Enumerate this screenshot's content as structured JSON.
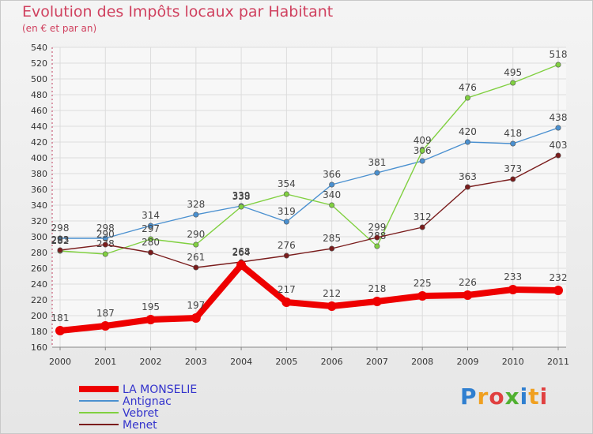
{
  "chart_data": {
    "type": "line",
    "title": "Evolution des Impôts locaux par Habitant",
    "subtitle": "(en € et par an)",
    "x": [
      "2000",
      "2001",
      "2002",
      "2003",
      "2004",
      "2005",
      "2006",
      "2007",
      "2008",
      "2009",
      "2010",
      "2011"
    ],
    "ylim": [
      160,
      540
    ],
    "yticks": [
      160,
      180,
      200,
      220,
      240,
      260,
      280,
      300,
      320,
      340,
      360,
      380,
      400,
      420,
      440,
      460,
      480,
      500,
      520,
      540
    ],
    "grid": true,
    "legend_position": "bottom-left",
    "series": [
      {
        "name": "LA MONSELIE",
        "color": "#ee0000",
        "bold": true,
        "values": [
          181,
          187,
          195,
          197,
          264,
          217,
          212,
          218,
          225,
          226,
          233,
          232
        ]
      },
      {
        "name": "Antignac",
        "color": "#4a90d0",
        "values": [
          298,
          298,
          314,
          328,
          339,
          319,
          366,
          381,
          396,
          420,
          418,
          438
        ]
      },
      {
        "name": "Vebret",
        "color": "#80d040",
        "values": [
          282,
          278,
          297,
          290,
          338,
          354,
          340,
          288,
          409,
          476,
          495,
          518
        ]
      },
      {
        "name": "Menet",
        "color": "#7a1c1c",
        "values": [
          283,
          290,
          280,
          261,
          268,
          276,
          285,
          299,
          312,
          363,
          373,
          403
        ]
      }
    ]
  },
  "logo": {
    "letters": [
      "P",
      "r",
      "o",
      "x",
      "i",
      "t",
      "i"
    ],
    "colors": [
      "#2f7fd0",
      "#f0a020",
      "#e04040",
      "#50b030",
      "#2f7fd0",
      "#f0a020",
      "#e04040"
    ]
  }
}
